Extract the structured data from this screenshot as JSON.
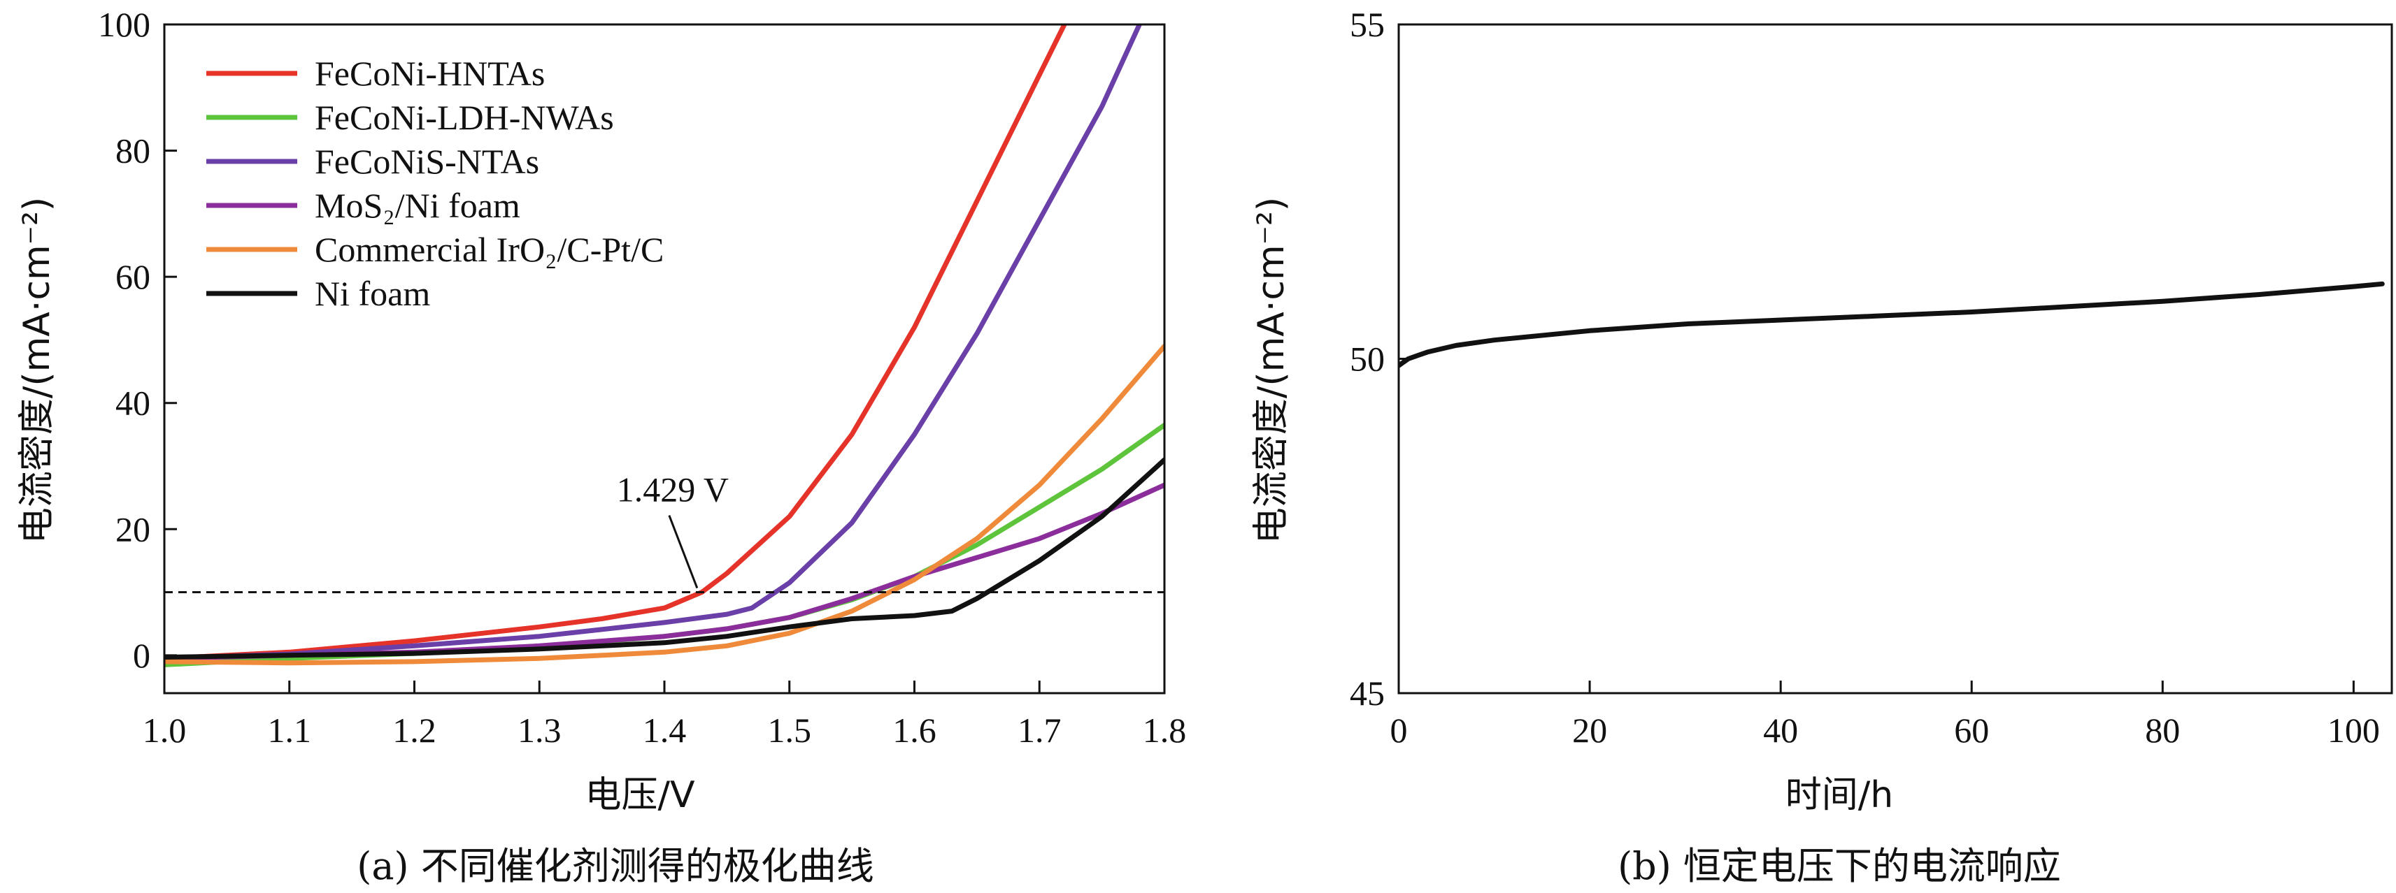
{
  "chart_data": [
    {
      "type": "line",
      "caption": "(a) 不同催化剂测得的极化曲线",
      "xlabel": "电压/V",
      "ylabel": "电流密度/(mA·cm⁻²)",
      "xlim": [
        1.0,
        1.8
      ],
      "ylim": [
        -6,
        100
      ],
      "xticks": [
        1.0,
        1.1,
        1.2,
        1.3,
        1.4,
        1.5,
        1.6,
        1.7,
        1.8
      ],
      "xtick_labels": [
        "1.0",
        "1.1",
        "1.2",
        "1.3",
        "1.4",
        "1.5",
        "1.6",
        "1.7",
        "1.8"
      ],
      "yticks": [
        0,
        20,
        40,
        60,
        80,
        100
      ],
      "ytick_labels": [
        "0",
        "20",
        "40",
        "60",
        "80",
        "100"
      ],
      "legend_position": "top-left",
      "reference_line": {
        "y": 10,
        "style": "dashed"
      },
      "annotation": {
        "text": "1.429 V",
        "x": 1.429,
        "y": 10
      },
      "series": [
        {
          "name": "FeCoNi-HNTAs",
          "color": "#e5332a",
          "x": [
            1.0,
            1.1,
            1.2,
            1.3,
            1.35,
            1.4,
            1.43,
            1.45,
            1.5,
            1.55,
            1.6,
            1.65,
            1.7,
            1.72
          ],
          "y": [
            -0.5,
            0.5,
            2.3,
            4.5,
            5.8,
            7.5,
            10,
            13,
            22,
            35,
            52,
            72,
            92,
            100
          ]
        },
        {
          "name": "FeCoNi-LDH-NWAs",
          "color": "#5ec43c",
          "x": [
            1.0,
            1.1,
            1.2,
            1.3,
            1.4,
            1.45,
            1.5,
            1.55,
            1.6,
            1.65,
            1.7,
            1.75,
            1.8
          ],
          "y": [
            -1.5,
            -0.5,
            0.3,
            1.3,
            3.0,
            4.2,
            6.0,
            8.8,
            12.5,
            17.5,
            23.5,
            29.5,
            36.5
          ]
        },
        {
          "name": "FeCoNiS-NTAs",
          "color": "#6a3fa8",
          "x": [
            1.0,
            1.1,
            1.2,
            1.3,
            1.4,
            1.45,
            1.47,
            1.5,
            1.55,
            1.6,
            1.65,
            1.7,
            1.75,
            1.78
          ],
          "y": [
            -0.5,
            0.2,
            1.5,
            3.0,
            5.2,
            6.5,
            7.5,
            11.5,
            21,
            35,
            51,
            69,
            87,
            100
          ]
        },
        {
          "name": "MoS₂/Ni foam",
          "color": "#8b2d9a",
          "x": [
            1.0,
            1.1,
            1.2,
            1.3,
            1.4,
            1.45,
            1.5,
            1.55,
            1.6,
            1.65,
            1.7,
            1.75,
            1.8
          ],
          "y": [
            -0.5,
            0.0,
            0.5,
            1.5,
            3.0,
            4.2,
            6.0,
            9.0,
            12.5,
            15.5,
            18.5,
            22.5,
            27
          ]
        },
        {
          "name": "Commercial IrO₂/C-Pt/C",
          "color": "#ef8a3a",
          "x": [
            1.0,
            1.1,
            1.2,
            1.3,
            1.4,
            1.45,
            1.5,
            1.55,
            1.6,
            1.65,
            1.7,
            1.75,
            1.8
          ],
          "y": [
            -1.0,
            -1.2,
            -1.0,
            -0.5,
            0.5,
            1.5,
            3.5,
            7.0,
            12.0,
            18.5,
            27,
            37.5,
            49
          ]
        },
        {
          "name": "Ni foam",
          "color": "#111111",
          "x": [
            1.0,
            1.1,
            1.2,
            1.3,
            1.4,
            1.45,
            1.5,
            1.55,
            1.6,
            1.63,
            1.65,
            1.7,
            1.75,
            1.8
          ],
          "y": [
            -0.3,
            0.0,
            0.3,
            1.0,
            2.0,
            3.0,
            4.5,
            5.8,
            6.3,
            7.0,
            9.0,
            15,
            22,
            31
          ]
        }
      ]
    },
    {
      "type": "line",
      "caption": "(b) 恒定电压下的电流响应",
      "xlabel": "时间/h",
      "ylabel": "电流密度/(mA·cm⁻²)",
      "xlim": [
        0,
        104
      ],
      "ylim": [
        45,
        55
      ],
      "xticks": [
        0,
        20,
        40,
        60,
        80,
        100
      ],
      "xtick_labels": [
        "0",
        "20",
        "40",
        "60",
        "80",
        "100"
      ],
      "yticks": [
        45,
        50,
        55
      ],
      "ytick_labels": [
        "45",
        "50",
        "55"
      ],
      "series": [
        {
          "color": "#111111",
          "x": [
            0,
            1,
            3,
            6,
            10,
            20,
            30,
            40,
            50,
            60,
            70,
            80,
            90,
            100,
            103
          ],
          "y": [
            49.9,
            50.0,
            50.1,
            50.2,
            50.28,
            50.42,
            50.52,
            50.58,
            50.64,
            50.7,
            50.78,
            50.86,
            50.96,
            51.08,
            51.12
          ]
        }
      ]
    }
  ]
}
